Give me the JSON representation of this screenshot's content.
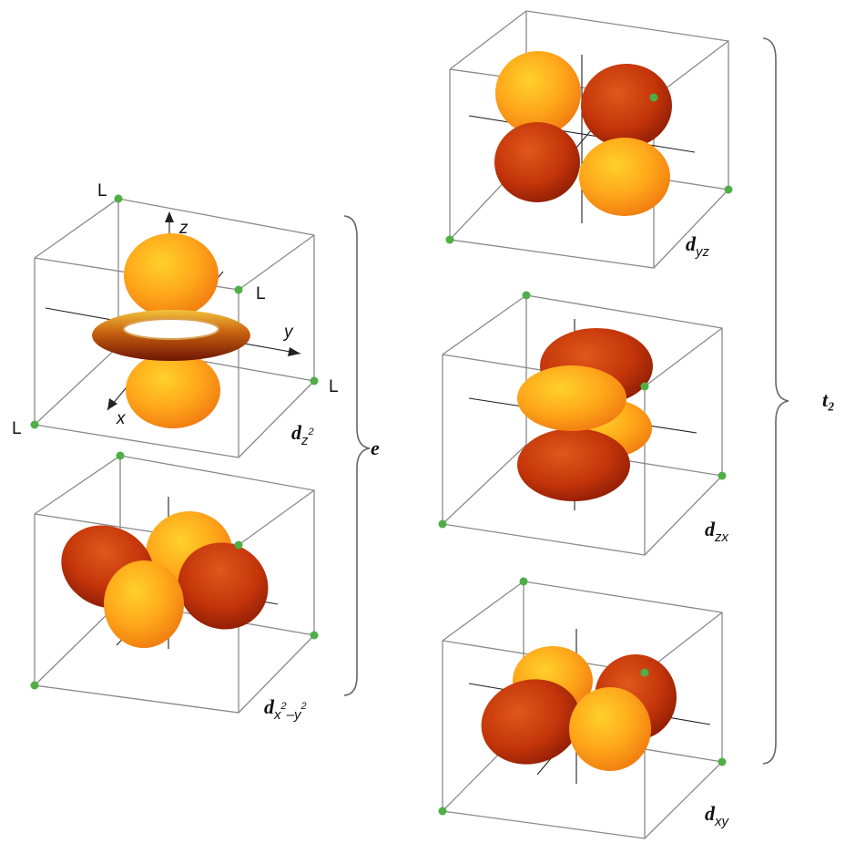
{
  "panels": {
    "dz2": {
      "orbital": "d",
      "subscript": "z",
      "superscript": "2"
    },
    "dx2y2": {
      "orbital": "d",
      "subscript": "x",
      "superscript": "2",
      "subscript_tail": "–y",
      "superscript_tail": "2"
    },
    "dyz": {
      "orbital": "d",
      "subscript": "yz"
    },
    "dzx": {
      "orbital": "d",
      "subscript": "zx"
    },
    "dxy": {
      "orbital": "d",
      "subscript": "xy"
    }
  },
  "ligand_label": "L",
  "axis_labels": {
    "x": "x",
    "y": "y",
    "z": "z"
  },
  "groups": {
    "e": "e",
    "t2": "t₂"
  },
  "colors": {
    "light_lobe": "#ffa71a",
    "dark_lobe": "#c4350a",
    "ligand_dot": "#4fae46",
    "cube_edge": "#8a8a8a"
  }
}
